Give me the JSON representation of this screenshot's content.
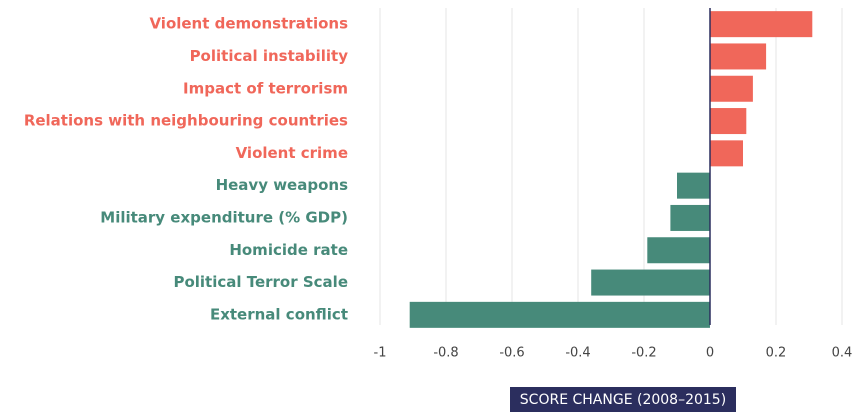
{
  "chart_data": {
    "type": "hbar",
    "categories": [
      "Violent demonstrations",
      "Political instability",
      "Impact of terrorism",
      "Relations with neighbouring countries",
      "Violent crime",
      "Heavy weapons",
      "Military expenditure (% GDP)",
      "Homicide rate",
      "Political Terror Scale",
      "External conflict"
    ],
    "values": [
      0.31,
      0.17,
      0.13,
      0.11,
      0.1,
      -0.1,
      -0.12,
      -0.19,
      -0.36,
      -0.91
    ],
    "colors": [
      "#f0675a",
      "#f0675a",
      "#f0675a",
      "#f0675a",
      "#f0675a",
      "#478a7a",
      "#478a7a",
      "#478a7a",
      "#478a7a",
      "#478a7a"
    ],
    "xlim": [
      -1,
      0.4
    ],
    "xticks": [
      -1,
      -0.8,
      -0.6,
      -0.4,
      -0.2,
      0,
      0.2,
      0.4
    ],
    "x_label": "SCORE CHANGE (2008–2015)",
    "grid": true
  }
}
